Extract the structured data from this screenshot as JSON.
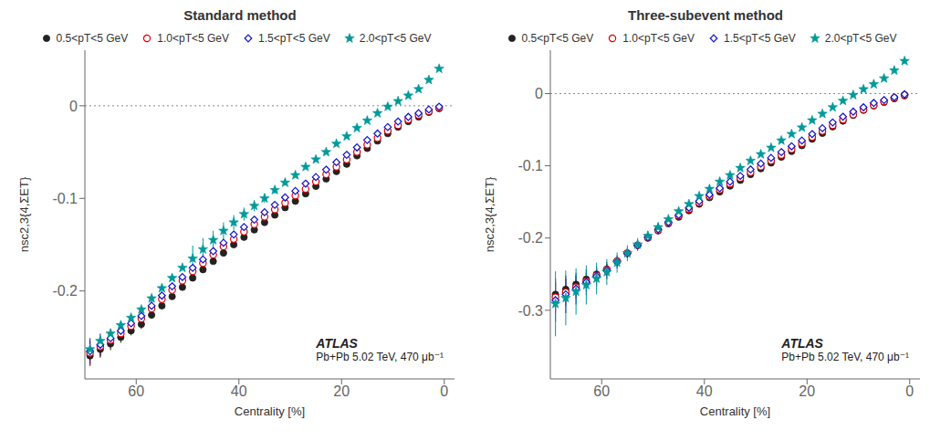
{
  "chart_data": [
    {
      "type": "scatter",
      "title": "Standard method",
      "x_label": "Centrality [%]",
      "y_label": "nsc2,3{4,ΣET}",
      "xlim": [
        70,
        -2
      ],
      "ylim": [
        -0.295,
        0.06
      ],
      "xticks": [
        60,
        40,
        20,
        0
      ],
      "yticks": [
        0.0,
        -0.1,
        -0.2
      ],
      "hlines": [
        0
      ],
      "grid": false,
      "annotations": [
        "ATLAS",
        "Pb+Pb 5.02 TeV, 470 μb⁻¹"
      ],
      "series": [
        {
          "name": "0.5<pT<5 GeV",
          "color": "#222222",
          "marker": "circle",
          "x": [
            1,
            3,
            5,
            7,
            9,
            11,
            13,
            15,
            17,
            19,
            21,
            23,
            25,
            27,
            29,
            31,
            33,
            35,
            37,
            39,
            41,
            43,
            45,
            47,
            49,
            51,
            53,
            55,
            57,
            59,
            61,
            63,
            65,
            67,
            69
          ],
          "values": [
            -0.003,
            -0.007,
            -0.012,
            -0.017,
            -0.023,
            -0.03,
            -0.038,
            -0.046,
            -0.054,
            -0.063,
            -0.071,
            -0.079,
            -0.087,
            -0.095,
            -0.103,
            -0.11,
            -0.118,
            -0.126,
            -0.134,
            -0.142,
            -0.15,
            -0.159,
            -0.168,
            -0.177,
            -0.186,
            -0.196,
            -0.206,
            -0.216,
            -0.226,
            -0.236,
            -0.243,
            -0.25,
            -0.257,
            -0.263,
            -0.27
          ],
          "errors": [
            0.001,
            0.001,
            0.001,
            0.001,
            0.001,
            0.001,
            0.001,
            0.001,
            0.001,
            0.001,
            0.001,
            0.001,
            0.001,
            0.001,
            0.001,
            0.001,
            0.001,
            0.001,
            0.001,
            0.001,
            0.001,
            0.001,
            0.001,
            0.001,
            0.002,
            0.002,
            0.002,
            0.003,
            0.004,
            0.005,
            0.005,
            0.006,
            0.007,
            0.009,
            0.011
          ]
        },
        {
          "name": "1.0<pT<5 GeV",
          "color": "#dd0000",
          "marker": "open_circle",
          "x": [
            1,
            3,
            5,
            7,
            9,
            11,
            13,
            15,
            17,
            19,
            21,
            23,
            25,
            27,
            29,
            31,
            33,
            35,
            37,
            39,
            41,
            43,
            45,
            47,
            49,
            51,
            53,
            55,
            57,
            59,
            61,
            63,
            65,
            67,
            69
          ],
          "values": [
            -0.002,
            -0.006,
            -0.01,
            -0.015,
            -0.021,
            -0.027,
            -0.035,
            -0.042,
            -0.05,
            -0.058,
            -0.066,
            -0.074,
            -0.082,
            -0.09,
            -0.097,
            -0.105,
            -0.112,
            -0.12,
            -0.128,
            -0.136,
            -0.144,
            -0.152,
            -0.161,
            -0.17,
            -0.179,
            -0.189,
            -0.199,
            -0.209,
            -0.219,
            -0.23,
            -0.238,
            -0.246,
            -0.253,
            -0.26,
            -0.267
          ],
          "errors": [
            0.001,
            0.001,
            0.001,
            0.001,
            0.001,
            0.001,
            0.001,
            0.001,
            0.001,
            0.001,
            0.001,
            0.001,
            0.001,
            0.001,
            0.001,
            0.001,
            0.001,
            0.001,
            0.001,
            0.001,
            0.001,
            0.001,
            0.001,
            0.002,
            0.002,
            0.002,
            0.003,
            0.003,
            0.004,
            0.005,
            0.006,
            0.007,
            0.009,
            0.011,
            0.013
          ]
        },
        {
          "name": "1.5<pT<5 GeV",
          "color": "#1111cc",
          "marker": "open_diamond",
          "x": [
            1,
            3,
            5,
            7,
            9,
            11,
            13,
            15,
            17,
            19,
            21,
            23,
            25,
            27,
            29,
            31,
            33,
            35,
            37,
            39,
            41,
            43,
            45,
            47,
            49,
            51,
            53,
            55,
            57,
            59,
            61,
            63,
            65,
            67,
            69
          ],
          "values": [
            -0.001,
            -0.004,
            -0.008,
            -0.012,
            -0.017,
            -0.023,
            -0.03,
            -0.037,
            -0.045,
            -0.053,
            -0.061,
            -0.069,
            -0.077,
            -0.084,
            -0.092,
            -0.099,
            -0.107,
            -0.115,
            -0.123,
            -0.131,
            -0.139,
            -0.148,
            -0.157,
            -0.166,
            -0.175,
            -0.185,
            -0.195,
            -0.205,
            -0.216,
            -0.227,
            -0.235,
            -0.243,
            -0.251,
            -0.258,
            -0.265
          ],
          "errors": [
            0.001,
            0.001,
            0.001,
            0.001,
            0.001,
            0.001,
            0.001,
            0.001,
            0.001,
            0.001,
            0.001,
            0.001,
            0.001,
            0.001,
            0.001,
            0.001,
            0.001,
            0.001,
            0.001,
            0.001,
            0.001,
            0.001,
            0.002,
            0.002,
            0.002,
            0.003,
            0.003,
            0.004,
            0.005,
            0.006,
            0.007,
            0.008,
            0.01,
            0.012,
            0.014
          ]
        },
        {
          "name": "2.0<pT<5 GeV",
          "color": "#009999",
          "marker": "star",
          "x": [
            1,
            3,
            5,
            7,
            9,
            11,
            13,
            15,
            17,
            19,
            21,
            23,
            25,
            27,
            29,
            31,
            33,
            35,
            37,
            39,
            41,
            43,
            45,
            47,
            49,
            51,
            53,
            55,
            57,
            59,
            61,
            63,
            65,
            67,
            69
          ],
          "values": [
            0.04,
            0.028,
            0.018,
            0.011,
            0.005,
            -0.001,
            -0.008,
            -0.016,
            -0.024,
            -0.033,
            -0.041,
            -0.05,
            -0.058,
            -0.066,
            -0.075,
            -0.083,
            -0.091,
            -0.1,
            -0.108,
            -0.117,
            -0.126,
            -0.135,
            -0.145,
            -0.155,
            -0.165,
            -0.175,
            -0.186,
            -0.197,
            -0.208,
            -0.22,
            -0.229,
            -0.237,
            -0.246,
            -0.254,
            -0.263
          ],
          "errors": [
            0.001,
            0.001,
            0.001,
            0.001,
            0.001,
            0.001,
            0.001,
            0.001,
            0.001,
            0.001,
            0.001,
            0.002,
            0.002,
            0.002,
            0.002,
            0.003,
            0.004,
            0.005,
            0.006,
            0.007,
            0.008,
            0.009,
            0.01,
            0.012,
            0.014,
            0.001,
            0.001,
            0.001,
            0.001,
            0.001,
            0.001,
            0.001,
            0.001,
            0.001,
            0.001
          ]
        }
      ]
    },
    {
      "type": "scatter",
      "title": "Three-subevent method",
      "x_label": "Centrality [%]",
      "y_label": "nsc2,3{4,ΣET}",
      "xlim": [
        70,
        -2
      ],
      "ylim": [
        -0.395,
        0.06
      ],
      "xticks": [
        60,
        40,
        20,
        0
      ],
      "yticks": [
        0.0,
        -0.1,
        -0.2,
        -0.3
      ],
      "hlines": [
        0
      ],
      "grid": false,
      "annotations": [
        "ATLAS",
        "Pb+Pb 5.02 TeV, 470 μb⁻¹"
      ],
      "series": [
        {
          "name": "0.5<pT<5 GeV",
          "color": "#222222",
          "marker": "circle",
          "x": [
            1,
            3,
            5,
            7,
            9,
            11,
            13,
            15,
            17,
            19,
            21,
            23,
            25,
            27,
            29,
            31,
            33,
            35,
            37,
            39,
            41,
            43,
            45,
            47,
            49,
            51,
            53,
            55,
            57,
            59,
            61,
            63,
            65,
            67,
            69
          ],
          "values": [
            -0.003,
            -0.007,
            -0.012,
            -0.017,
            -0.023,
            -0.03,
            -0.038,
            -0.046,
            -0.055,
            -0.063,
            -0.072,
            -0.08,
            -0.088,
            -0.096,
            -0.104,
            -0.112,
            -0.12,
            -0.128,
            -0.136,
            -0.144,
            -0.153,
            -0.162,
            -0.171,
            -0.18,
            -0.19,
            -0.2,
            -0.21,
            -0.221,
            -0.232,
            -0.243,
            -0.25,
            -0.257,
            -0.264,
            -0.271,
            -0.278
          ],
          "errors": [
            0.001,
            0.001,
            0.001,
            0.001,
            0.001,
            0.001,
            0.001,
            0.001,
            0.001,
            0.001,
            0.001,
            0.001,
            0.001,
            0.001,
            0.001,
            0.001,
            0.001,
            0.001,
            0.001,
            0.001,
            0.001,
            0.001,
            0.001,
            0.002,
            0.002,
            0.003,
            0.003,
            0.004,
            0.005,
            0.007,
            0.008,
            0.01,
            0.012,
            0.014,
            0.016
          ]
        },
        {
          "name": "1.0<pT<5 GeV",
          "color": "#dd0000",
          "marker": "open_circle",
          "x": [
            1,
            3,
            5,
            7,
            9,
            11,
            13,
            15,
            17,
            19,
            21,
            23,
            25,
            27,
            29,
            31,
            33,
            35,
            37,
            39,
            41,
            43,
            45,
            47,
            49,
            51,
            53,
            55,
            57,
            59,
            61,
            63,
            65,
            67,
            69
          ],
          "values": [
            -0.002,
            -0.006,
            -0.011,
            -0.016,
            -0.022,
            -0.029,
            -0.036,
            -0.044,
            -0.052,
            -0.06,
            -0.069,
            -0.077,
            -0.085,
            -0.093,
            -0.101,
            -0.109,
            -0.117,
            -0.125,
            -0.133,
            -0.142,
            -0.151,
            -0.16,
            -0.169,
            -0.179,
            -0.189,
            -0.199,
            -0.21,
            -0.221,
            -0.232,
            -0.244,
            -0.252,
            -0.26,
            -0.268,
            -0.275,
            -0.282
          ],
          "errors": [
            0.001,
            0.001,
            0.001,
            0.001,
            0.001,
            0.001,
            0.001,
            0.001,
            0.001,
            0.001,
            0.001,
            0.001,
            0.001,
            0.001,
            0.001,
            0.001,
            0.001,
            0.001,
            0.001,
            0.001,
            0.001,
            0.001,
            0.002,
            0.002,
            0.003,
            0.003,
            0.004,
            0.005,
            0.006,
            0.008,
            0.01,
            0.013,
            0.016,
            0.019,
            0.022
          ]
        },
        {
          "name": "1.5<pT<5 GeV",
          "color": "#1111cc",
          "marker": "open_diamond",
          "x": [
            1,
            3,
            5,
            7,
            9,
            11,
            13,
            15,
            17,
            19,
            21,
            23,
            25,
            27,
            29,
            31,
            33,
            35,
            37,
            39,
            41,
            43,
            45,
            47,
            49,
            51,
            53,
            55,
            57,
            59,
            61,
            63,
            65,
            67,
            69
          ],
          "values": [
            -0.001,
            -0.005,
            -0.009,
            -0.013,
            -0.019,
            -0.025,
            -0.032,
            -0.04,
            -0.048,
            -0.056,
            -0.065,
            -0.073,
            -0.081,
            -0.089,
            -0.097,
            -0.105,
            -0.114,
            -0.122,
            -0.131,
            -0.14,
            -0.149,
            -0.158,
            -0.168,
            -0.178,
            -0.188,
            -0.199,
            -0.21,
            -0.221,
            -0.233,
            -0.245,
            -0.253,
            -0.261,
            -0.27,
            -0.278,
            -0.286
          ],
          "errors": [
            0.001,
            0.001,
            0.001,
            0.001,
            0.001,
            0.001,
            0.001,
            0.001,
            0.001,
            0.001,
            0.001,
            0.001,
            0.001,
            0.001,
            0.001,
            0.001,
            0.001,
            0.001,
            0.001,
            0.002,
            0.002,
            0.002,
            0.003,
            0.003,
            0.004,
            0.005,
            0.006,
            0.007,
            0.009,
            0.012,
            0.014,
            0.018,
            0.022,
            0.026,
            0.03
          ]
        },
        {
          "name": "2.0<pT<5 GeV",
          "color": "#009999",
          "marker": "star",
          "x": [
            1,
            3,
            5,
            7,
            9,
            11,
            13,
            15,
            17,
            19,
            21,
            23,
            25,
            27,
            29,
            31,
            33,
            35,
            37,
            39,
            41,
            43,
            45,
            47,
            49,
            51,
            53,
            55,
            57,
            59,
            61,
            63,
            65,
            67,
            69
          ],
          "values": [
            0.045,
            0.032,
            0.021,
            0.013,
            0.006,
            -0.002,
            -0.01,
            -0.019,
            -0.028,
            -0.037,
            -0.047,
            -0.056,
            -0.065,
            -0.075,
            -0.084,
            -0.093,
            -0.103,
            -0.113,
            -0.122,
            -0.132,
            -0.142,
            -0.153,
            -0.163,
            -0.174,
            -0.185,
            -0.197,
            -0.209,
            -0.221,
            -0.234,
            -0.247,
            -0.256,
            -0.265,
            -0.274,
            -0.283,
            -0.291
          ],
          "errors": [
            0.001,
            0.001,
            0.001,
            0.001,
            0.001,
            0.001,
            0.001,
            0.001,
            0.001,
            0.001,
            0.001,
            0.001,
            0.001,
            0.001,
            0.001,
            0.001,
            0.001,
            0.001,
            0.002,
            0.002,
            0.003,
            0.003,
            0.004,
            0.005,
            0.006,
            0.007,
            0.009,
            0.011,
            0.014,
            0.018,
            0.022,
            0.027,
            0.032,
            0.038,
            0.045
          ]
        }
      ]
    }
  ]
}
